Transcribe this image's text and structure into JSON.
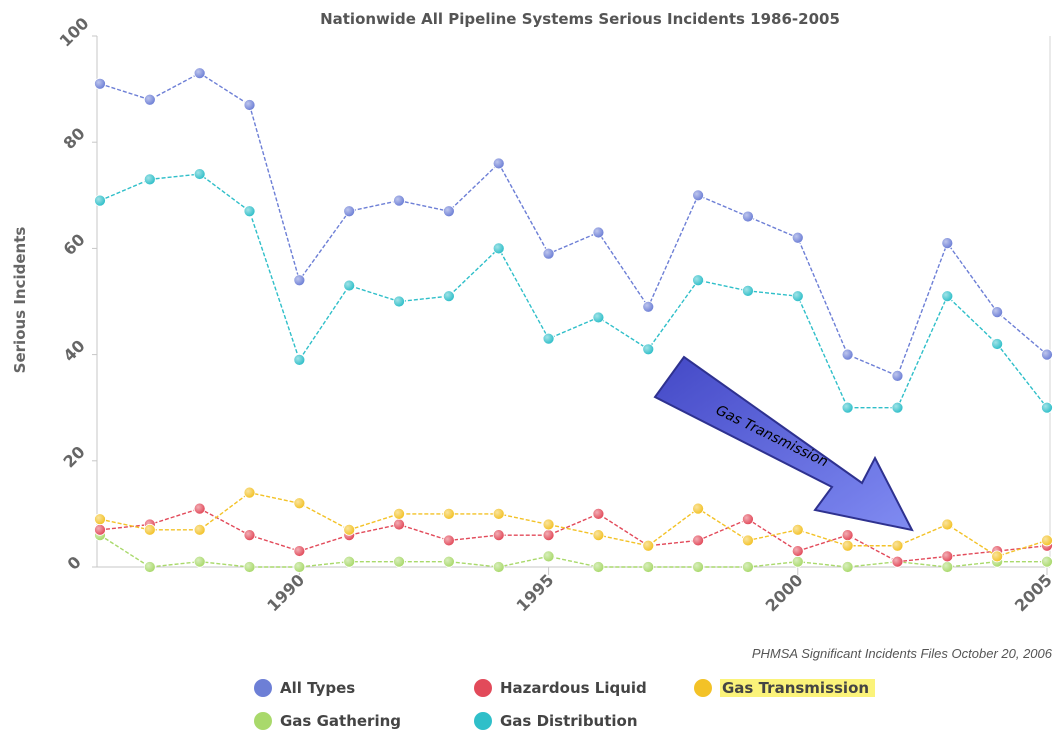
{
  "chart_data": {
    "type": "line",
    "title": "Nationwide All Pipeline Systems Serious Incidents 1986-2005",
    "xlabel": "",
    "ylabel": "Serious Incidents",
    "x": [
      1986,
      1987,
      1988,
      1989,
      1990,
      1991,
      1992,
      1993,
      1994,
      1995,
      1996,
      1997,
      1998,
      1999,
      2000,
      2001,
      2002,
      2003,
      2004,
      2005
    ],
    "xticks": [
      "1990",
      "1995",
      "2000",
      "2005"
    ],
    "yticks": [
      "0",
      "20",
      "40",
      "60",
      "80",
      "100"
    ],
    "ylim": [
      0,
      100
    ],
    "grid": false,
    "series": [
      {
        "name": "All Types",
        "color": "#6d7fd6",
        "values": [
          91,
          88,
          93,
          87,
          54,
          67,
          69,
          67,
          76,
          59,
          63,
          49,
          70,
          66,
          62,
          40,
          36,
          61,
          48,
          40
        ]
      },
      {
        "name": "Hazardous Liquid",
        "color": "#e24a5a",
        "values": [
          7,
          8,
          11,
          6,
          3,
          6,
          8,
          5,
          6,
          6,
          10,
          4,
          5,
          9,
          3,
          6,
          1,
          2,
          3,
          4
        ]
      },
      {
        "name": "Gas Transmission",
        "color": "#f3c227",
        "values": [
          9,
          7,
          7,
          14,
          12,
          7,
          10,
          10,
          10,
          8,
          6,
          4,
          11,
          5,
          7,
          4,
          4,
          8,
          2,
          5
        ]
      },
      {
        "name": "Gas Gathering",
        "color": "#a9d96b",
        "values": [
          6,
          0,
          1,
          0,
          0,
          1,
          1,
          1,
          0,
          2,
          0,
          0,
          0,
          0,
          1,
          0,
          1,
          0,
          1,
          1
        ]
      },
      {
        "name": "Gas Distribution",
        "color": "#2fbfc9",
        "values": [
          69,
          73,
          74,
          67,
          39,
          53,
          50,
          51,
          60,
          43,
          47,
          41,
          54,
          52,
          51,
          30,
          30,
          51,
          42,
          30
        ]
      }
    ],
    "legend": {
      "placement": "bottom",
      "highlighted": "Gas Transmission"
    },
    "annotation": {
      "text": "Gas Transmission",
      "type": "arrow"
    },
    "source_note": "PHMSA Significant Incidents Files October 20, 2006"
  }
}
